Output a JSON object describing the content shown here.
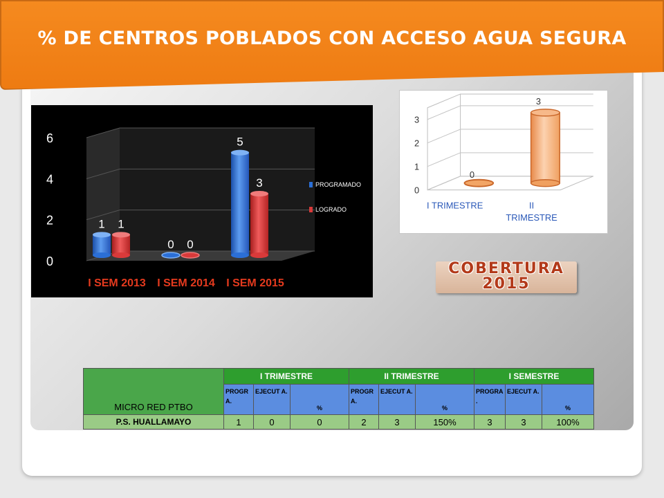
{
  "title": "% DE CENTROS POBLADOS CON ACCESO AGUA SEGURA",
  "badge": {
    "line1": "COBERTURA",
    "line2": "2015"
  },
  "colors": {
    "banner": "#f58a1f",
    "programado": "#2b6fd6",
    "logrado": "#d93a3a",
    "orange_bar": "#f2a566",
    "table_green": "#2e9e2e",
    "table_blue": "#5b8de0"
  },
  "chart_data": [
    {
      "type": "bar",
      "categories": [
        "I SEM 2013",
        "I SEM 2014",
        "I SEM 2015"
      ],
      "series": [
        {
          "name": "PROGRAMADO",
          "values": [
            1,
            0,
            5
          ]
        },
        {
          "name": "LOGRADO",
          "values": [
            1,
            0,
            3
          ]
        }
      ],
      "yticks": [
        "0",
        "2",
        "4",
        "6"
      ],
      "ylim": [
        0,
        6
      ],
      "legend": "right"
    },
    {
      "type": "bar",
      "categories": [
        "I TRIMESTRE",
        "II TRIMESTRE"
      ],
      "series": [
        {
          "values": [
            0,
            3
          ]
        }
      ],
      "yticks": [
        "0",
        "1",
        "2",
        "3"
      ],
      "ylim": [
        0,
        3.5
      ]
    }
  ],
  "table": {
    "row_header": "MICRO RED  PTBO",
    "groups": [
      "I TRIMESTRE",
      "II TRIMESTRE",
      "I SEMESTRE"
    ],
    "subheaders": [
      "PROGR A.",
      "EJECUT A.",
      "%",
      "PROGR A.",
      "EJECUT A.",
      "%",
      "PROGRA .",
      "EJECUT A.",
      "%"
    ],
    "rows": [
      {
        "name": "P.S. HUALLAMAYO",
        "values": [
          "1",
          "0",
          "0",
          "2",
          "3",
          "150%",
          "3",
          "3",
          "100%"
        ]
      }
    ]
  }
}
